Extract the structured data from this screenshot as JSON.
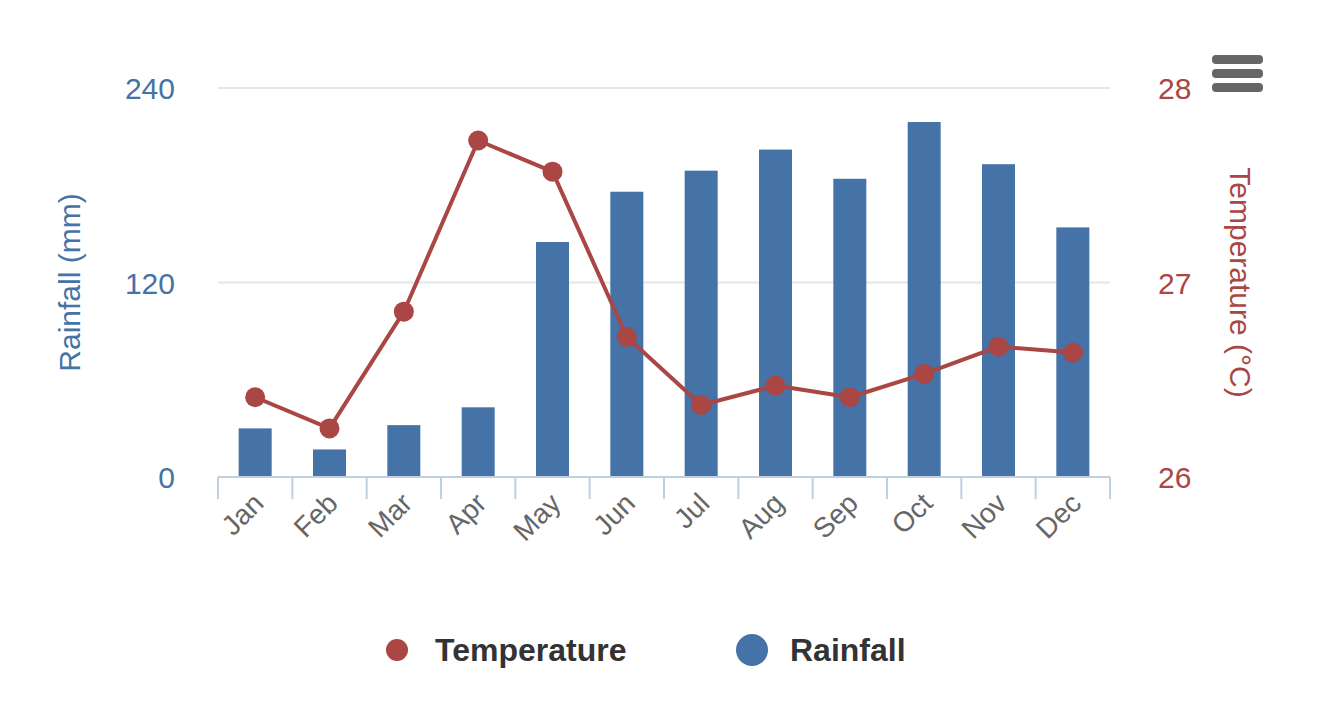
{
  "chart_data": {
    "type": "bar",
    "categories": [
      "Jan",
      "Feb",
      "Mar",
      "Apr",
      "May",
      "Jun",
      "Jul",
      "Aug",
      "Sep",
      "Oct",
      "Nov",
      "Dec"
    ],
    "series": [
      {
        "name": "Temperature",
        "type": "line",
        "axis": "y2",
        "color": "#aa4643",
        "marker": "circle",
        "values": [
          26.41,
          26.25,
          26.85,
          27.73,
          27.57,
          26.72,
          26.37,
          26.47,
          26.41,
          26.53,
          26.67,
          26.64
        ]
      },
      {
        "name": "Rainfall",
        "type": "bar",
        "color": "#4572a7",
        "values": [
          30,
          17,
          32,
          43,
          145,
          176,
          189,
          202,
          184,
          219,
          193,
          154
        ]
      }
    ],
    "y_label": "Rainfall (mm)",
    "y2_label": "Temperature (°C)",
    "ylim": [
      0,
      240
    ],
    "yticks": [
      0,
      120,
      240
    ],
    "y2lim": [
      26,
      28
    ],
    "y2ticks": [
      26,
      27,
      28
    ],
    "grid": true,
    "legend": "bottom"
  }
}
